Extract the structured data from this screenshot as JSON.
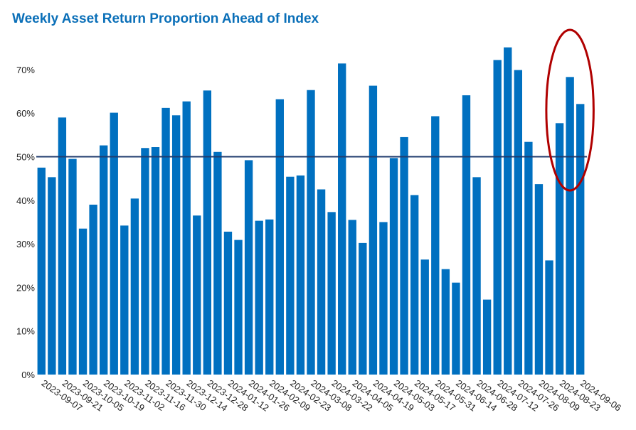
{
  "chart_data": {
    "type": "bar",
    "title": "Weekly Asset Return Proportion Ahead of Index",
    "xlabel": "",
    "ylabel": "",
    "ylim": [
      0,
      0.77
    ],
    "yticks": [
      {
        "value": 0,
        "label": "0%"
      },
      {
        "value": 0.1,
        "label": "10%"
      },
      {
        "value": 0.2,
        "label": "20%"
      },
      {
        "value": 0.3,
        "label": "30%"
      },
      {
        "value": 0.4,
        "label": "40%"
      },
      {
        "value": 0.5,
        "label": "50%"
      },
      {
        "value": 0.6,
        "label": "60%"
      },
      {
        "value": 0.7,
        "label": "70%"
      }
    ],
    "xtick_labels": [
      "2023-09-07",
      "2023-09-21",
      "2023-10-05",
      "2023-10-19",
      "2023-11-02",
      "2023-11-16",
      "2023-11-30",
      "2023-12-14",
      "2023-12-28",
      "2024-01-12",
      "2024-01-26",
      "2024-02-09",
      "2024-02-23",
      "2024-03-08",
      "2024-03-22",
      "2024-04-05",
      "2024-04-19",
      "2024-05-03",
      "2024-05-17",
      "2024-05-31",
      "2024-06-14",
      "2024-06-28",
      "2024-07-12",
      "2024-07-26",
      "2024-08-09",
      "2024-08-23",
      "2024-09-06"
    ],
    "values": [
      0.475,
      0.453,
      0.59,
      0.495,
      0.335,
      0.39,
      0.526,
      0.601,
      0.342,
      0.404,
      0.52,
      0.522,
      0.612,
      0.595,
      0.627,
      0.365,
      0.652,
      0.511,
      0.328,
      0.309,
      0.492,
      0.353,
      0.356,
      0.632,
      0.454,
      0.457,
      0.653,
      0.425,
      0.373,
      0.714,
      0.355,
      0.302,
      0.663,
      0.35,
      0.497,
      0.545,
      0.412,
      0.264,
      0.593,
      0.242,
      0.211,
      0.641,
      0.453,
      0.172,
      0.722,
      0.751,
      0.699,
      0.534,
      0.437,
      0.262,
      0.577,
      0.683,
      0.621
    ],
    "reference_line": 0.5,
    "highlight": {
      "shape": "ellipse",
      "first_bar_index": 50,
      "last_bar_index": 52,
      "color": "#b00000"
    },
    "colors": {
      "bar": "#0070c0",
      "reference_line": "#1f3b6e",
      "title": "#0a6fb8"
    },
    "grid": false,
    "legend": "none"
  }
}
